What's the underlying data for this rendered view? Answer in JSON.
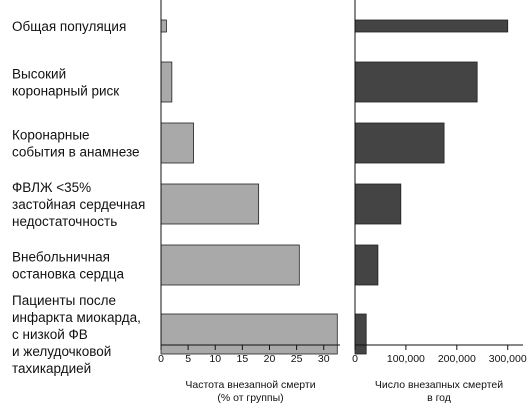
{
  "chart_data": [
    {
      "type": "bar",
      "orientation": "horizontal",
      "categories": [
        [
          "Общая популяция"
        ],
        [
          "Высокий",
          "коронарный риск"
        ],
        [
          "Коронарные",
          "события в анамнезе"
        ],
        [
          "ФВЛЖ <35%",
          "застойная сердечная",
          "недостаточность"
        ],
        [
          "Внебольничная",
          "остановка сердца"
        ],
        [
          "Пациенты после",
          "инфаркта миокарда,",
          "с низкой ФВ",
          "и желудочковой",
          "тахикардией"
        ]
      ],
      "values": [
        1,
        2,
        6,
        18,
        25.5,
        32.5
      ],
      "color": "#a9a9a9",
      "xlim": [
        0,
        33
      ],
      "ticks": [
        0,
        5,
        10,
        15,
        20,
        25,
        30
      ],
      "tick_labels": [
        "0",
        "5",
        "10",
        "15",
        "20",
        "25",
        "30"
      ],
      "xlabel": [
        "Частота внезапной смерти",
        "(% от группы)"
      ]
    },
    {
      "type": "bar",
      "orientation": "horizontal",
      "categories": [
        [
          "Общая популяция"
        ],
        [
          "Высокий",
          "коронарный риск"
        ],
        [
          "Коронарные",
          "события в анамнезе"
        ],
        [
          "ФВЛЖ <35%",
          "застойная сердечная",
          "недостаточность"
        ],
        [
          "Внебольничная",
          "остановка сердца"
        ],
        [
          "Пациенты после",
          "инфаркта миокарда,",
          "с низкой ФВ",
          "и желудочковой",
          "тахикардией"
        ]
      ],
      "values": [
        300000,
        240000,
        175000,
        90000,
        45000,
        22000
      ],
      "color": "#444444",
      "xlim": [
        0,
        330000
      ],
      "ticks": [
        0,
        100000,
        200000,
        300000
      ],
      "tick_labels": [
        "0",
        "100,000",
        "200,000",
        "300,000"
      ],
      "xlabel": [
        "Число внезапных смертей",
        "в год"
      ]
    }
  ]
}
